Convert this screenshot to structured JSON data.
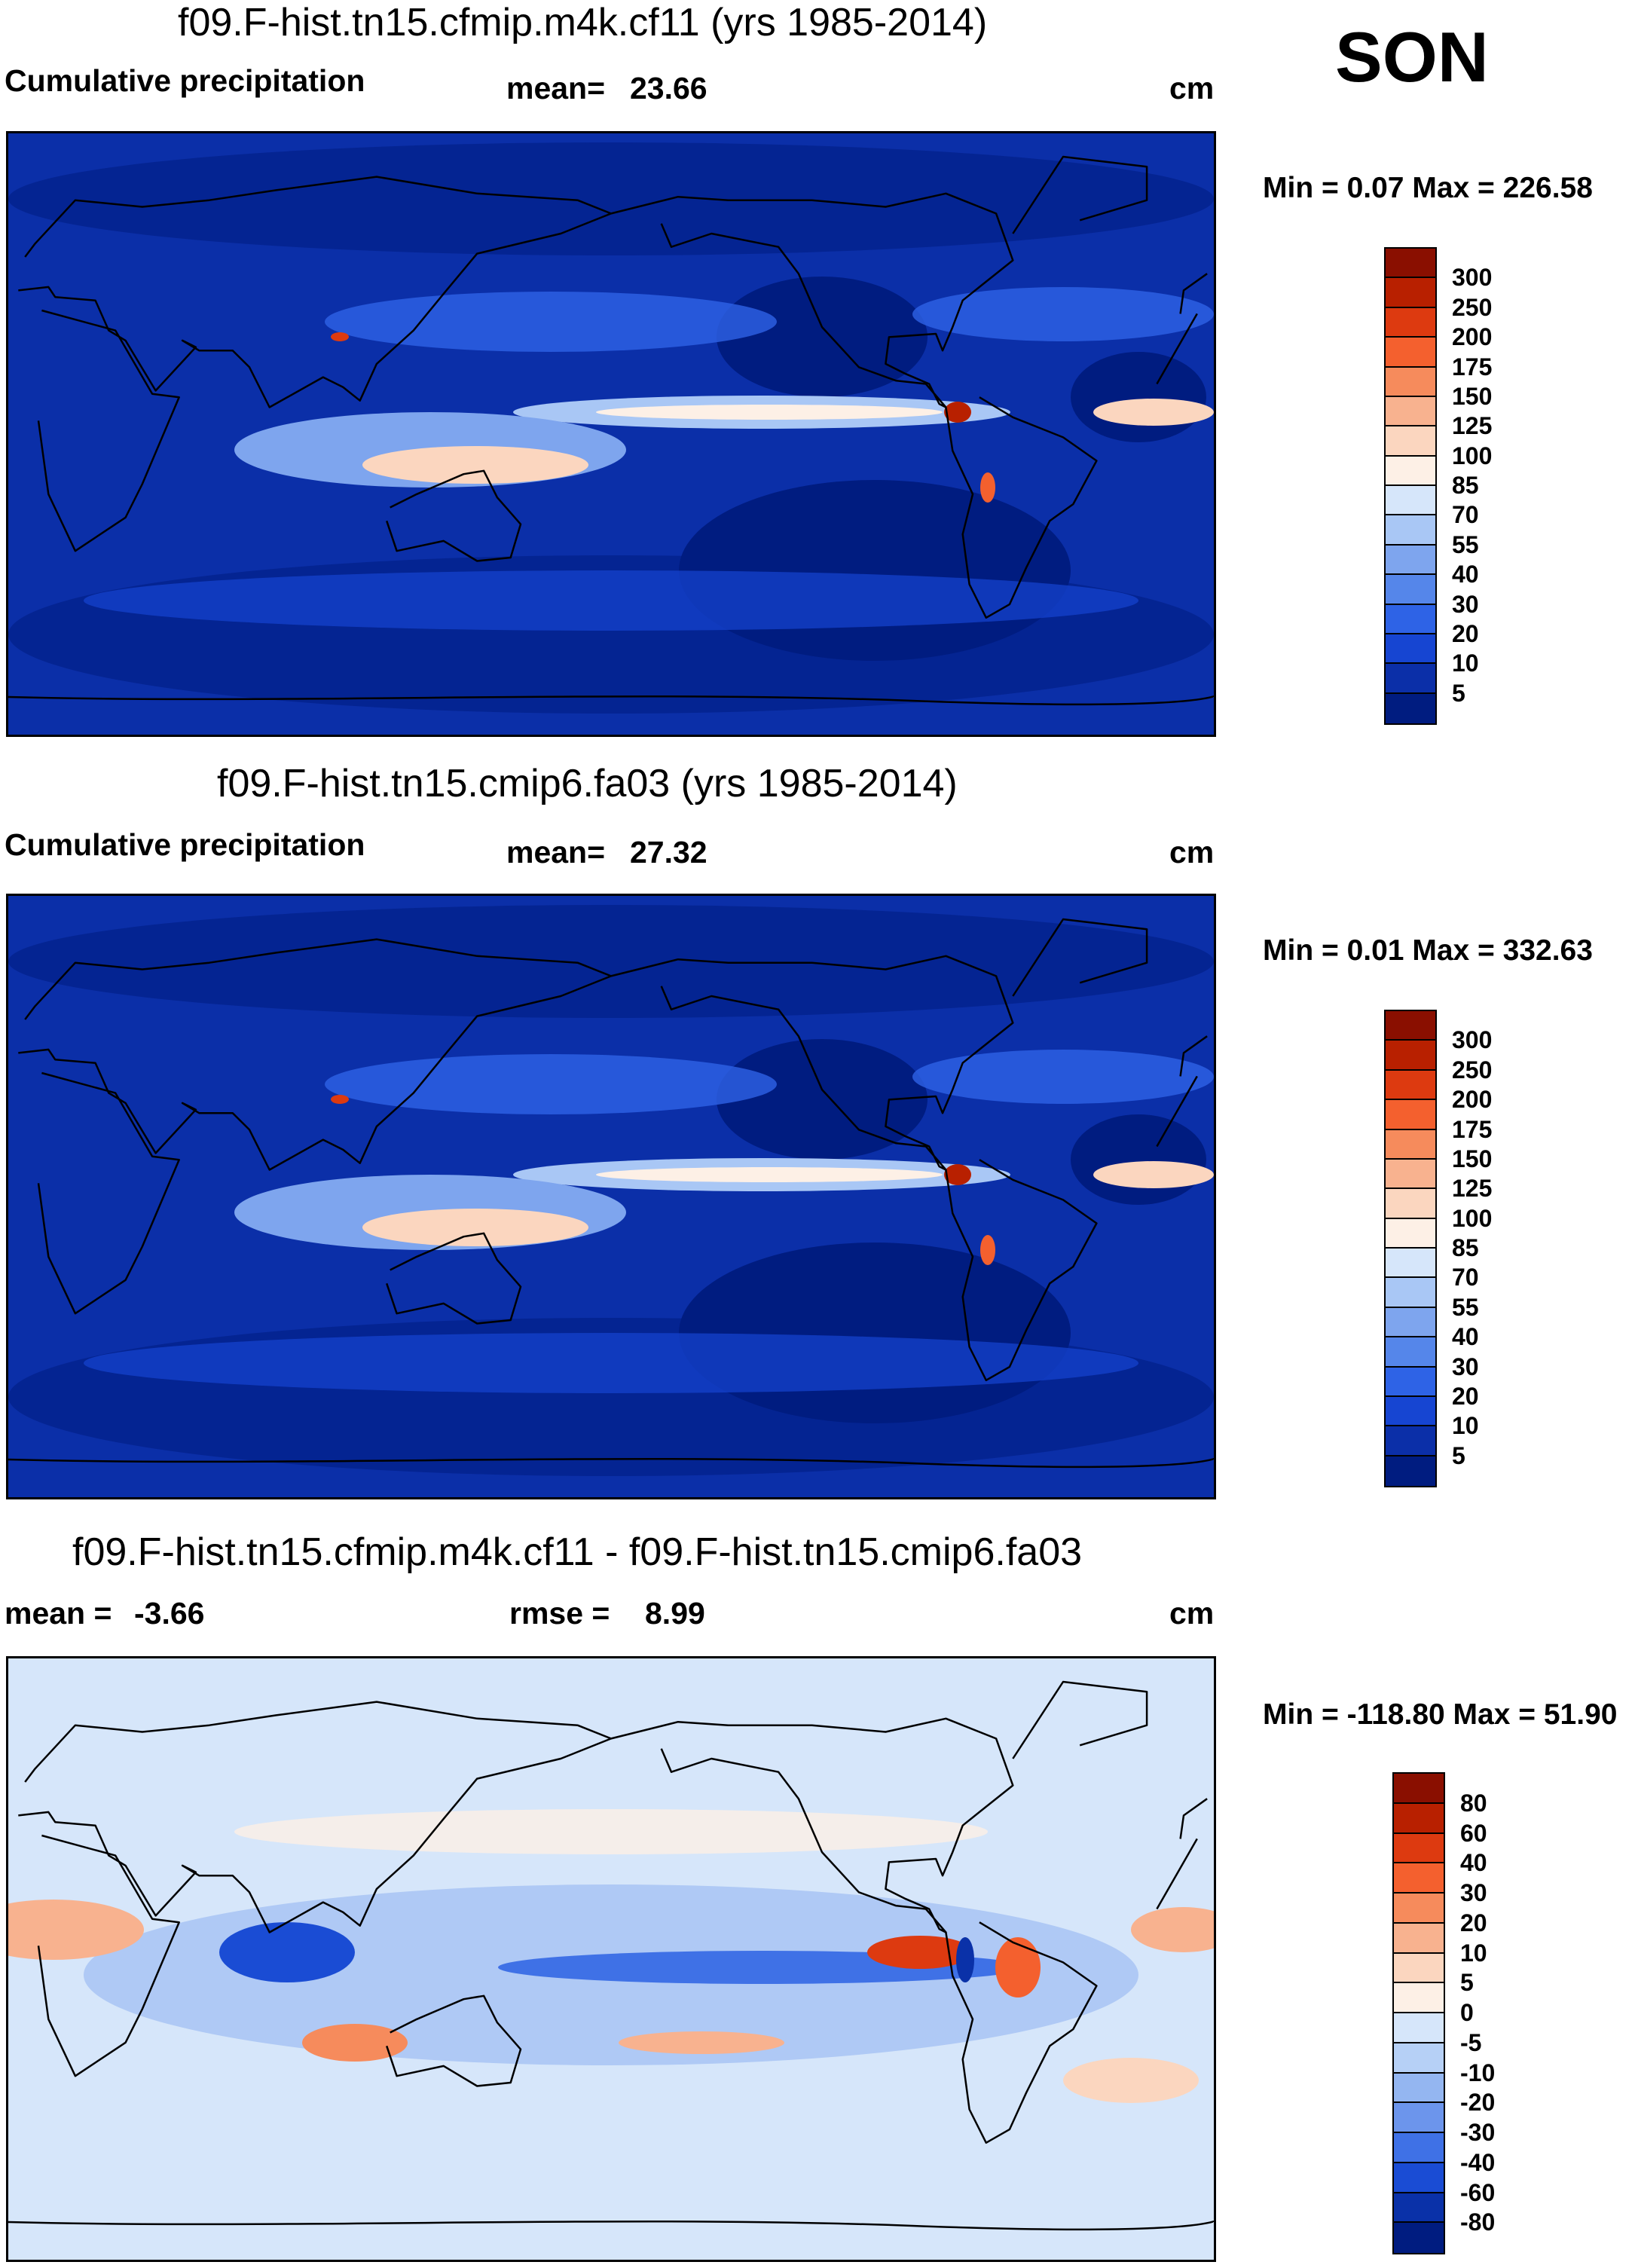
{
  "season": "SON",
  "panels": [
    {
      "title": "f09.F-hist.tn15.cfmip.m4k.cf11 (yrs 1985-2014)",
      "left_label": "Cumulative precipitation",
      "stat1_label": "mean=",
      "stat1_value": "23.66",
      "stat2_label": "",
      "stat2_value": "",
      "units": "cm",
      "minmax": "Min =   0.07 Max = 226.58",
      "map_type": "absolute"
    },
    {
      "title": "f09.F-hist.tn15.cmip6.fa03 (yrs 1985-2014)",
      "left_label": "Cumulative precipitation",
      "stat1_label": "mean=",
      "stat1_value": "27.32",
      "stat2_label": "",
      "stat2_value": "",
      "units": "cm",
      "minmax": "Min =   0.01 Max = 332.63",
      "map_type": "absolute"
    },
    {
      "title": "f09.F-hist.tn15.cfmip.m4k.cf11 - f09.F-hist.tn15.cmip6.fa03",
      "left_label": "",
      "stat1_label": "mean =",
      "stat1_value": "-3.66",
      "stat2_label": "rmse =",
      "stat2_value": "8.99",
      "units": "cm",
      "minmax": "Min = -118.80 Max =  51.90",
      "map_type": "difference"
    }
  ],
  "colorbars": {
    "absolute": {
      "labels": [
        "300",
        "250",
        "200",
        "175",
        "150",
        "125",
        "100",
        "85",
        "70",
        "55",
        "40",
        "30",
        "20",
        "10",
        "5"
      ],
      "colors": [
        "#8a0f00",
        "#b82000",
        "#dd3a10",
        "#f4602e",
        "#f68b5c",
        "#f8b28f",
        "#fbd6bf",
        "#fdf0e6",
        "#d6e6fa",
        "#a9c7f5",
        "#7ea5ee",
        "#5586ea",
        "#2e63e6",
        "#1645d2",
        "#0b2fa8",
        "#001c80"
      ]
    },
    "difference": {
      "labels": [
        "80",
        "60",
        "40",
        "30",
        "20",
        "10",
        "5",
        "0",
        "-5",
        "-10",
        "-20",
        "-30",
        "-40",
        "-60",
        "-80"
      ],
      "colors": [
        "#8a0f00",
        "#b82000",
        "#dd3a10",
        "#f4602e",
        "#f68b5c",
        "#f8b28f",
        "#fbd6bf",
        "#fdf0e6",
        "#d6e6fa",
        "#b6d0f6",
        "#94b6f1",
        "#6c95ec",
        "#3f71e6",
        "#1a4cd4",
        "#0a31a8",
        "#001c80"
      ]
    }
  }
}
